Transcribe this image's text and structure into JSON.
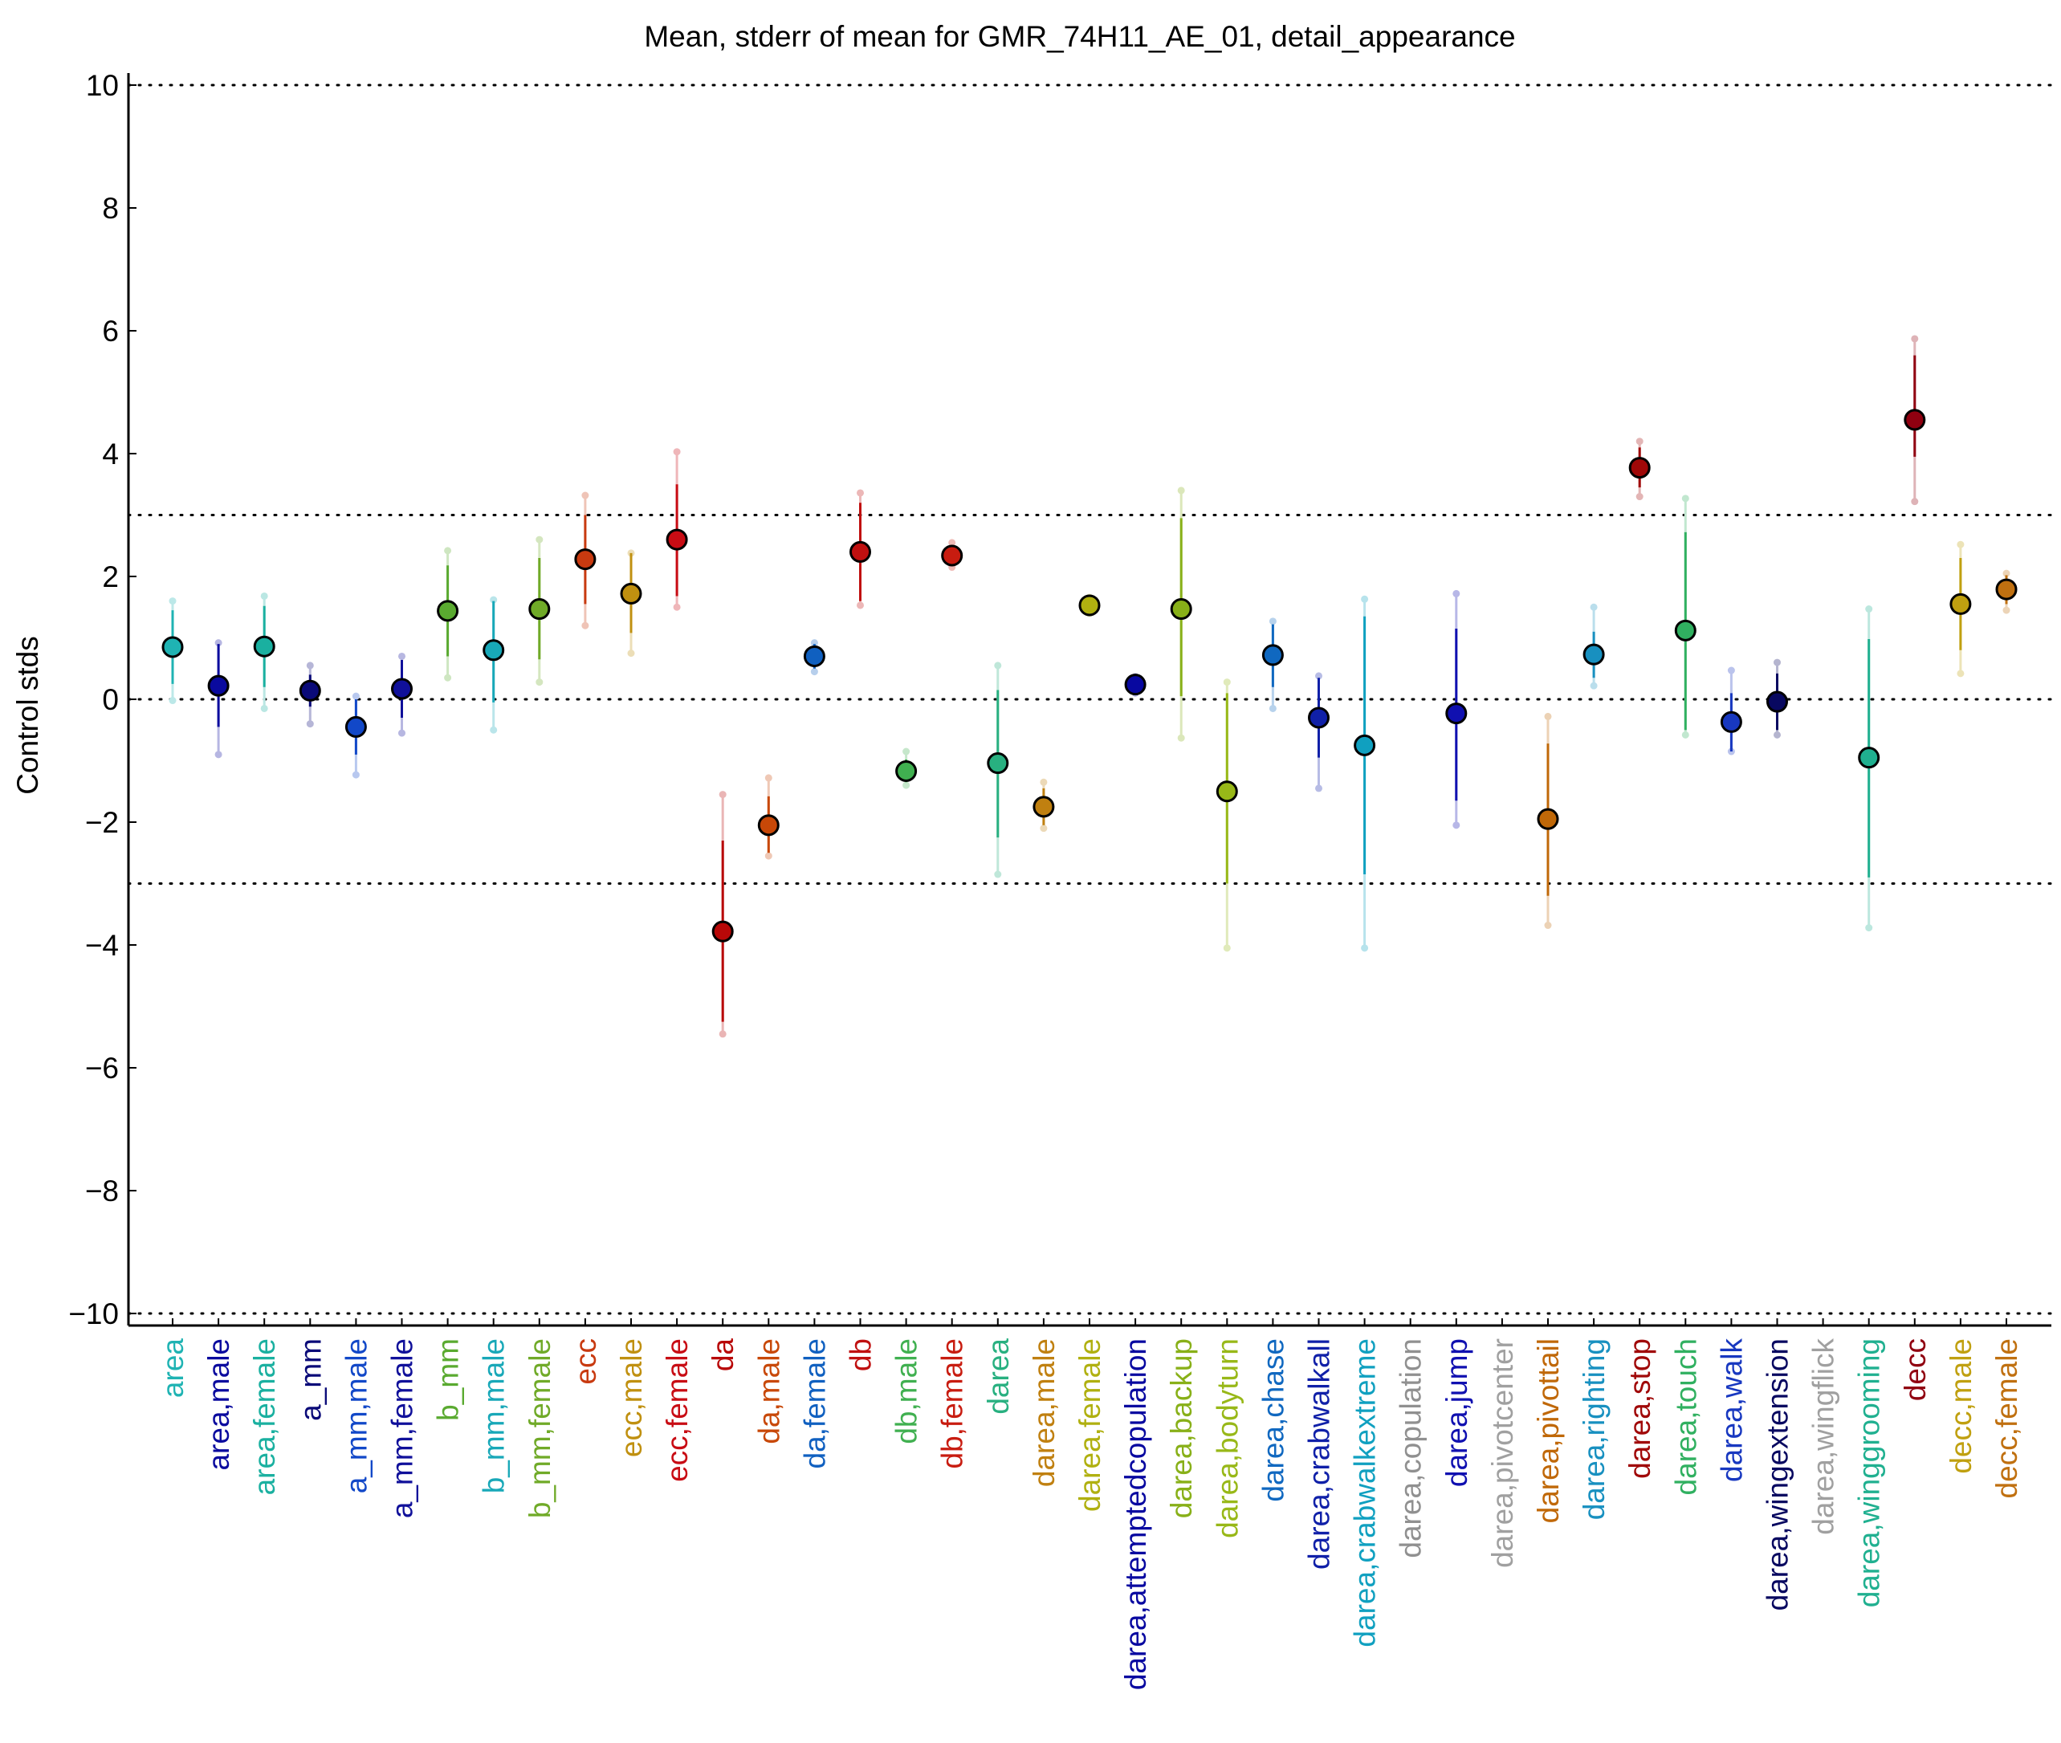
{
  "chart_data": {
    "type": "scatter",
    "title": "Mean, stderr of mean for GMR_74H11_AE_01, detail_appearance",
    "xlabel": "",
    "ylabel": "Control stds",
    "ylim": [
      -10.2,
      10.2
    ],
    "yticks": [
      10,
      8,
      6,
      4,
      2,
      0,
      -2,
      -4,
      -6,
      -8,
      -10
    ],
    "ytick_labels": [
      "10",
      "8",
      "6",
      "4",
      "2",
      "0",
      "−2",
      "−4",
      "−6",
      "−8",
      "−10"
    ],
    "reference_lines": [
      10,
      3,
      0,
      -3,
      -10
    ],
    "grid": false,
    "legend": "none",
    "marker": "circle with error bar",
    "points": [
      {
        "label": "area",
        "color": "#1fb3b3",
        "mean": 0.85,
        "se_low": 0.25,
        "se_high": 1.45,
        "ext_low": -0.02,
        "ext_high": 1.6
      },
      {
        "label": "area,male",
        "color": "#0a0a9e",
        "mean": 0.22,
        "se_low": -0.45,
        "se_high": 0.9,
        "ext_low": -0.9,
        "ext_high": 0.92
      },
      {
        "label": "area,female",
        "color": "#1ab0a0",
        "mean": 0.86,
        "se_low": 0.2,
        "se_high": 1.52,
        "ext_low": -0.15,
        "ext_high": 1.68
      },
      {
        "label": "a_mm",
        "color": "#0a0a78",
        "mean": 0.14,
        "se_low": -0.12,
        "se_high": 0.4,
        "ext_low": -0.4,
        "ext_high": 0.55
      },
      {
        "label": "a_mm,male",
        "color": "#1248c8",
        "mean": -0.45,
        "se_low": -0.9,
        "se_high": 0.0,
        "ext_low": -1.23,
        "ext_high": 0.05
      },
      {
        "label": "a_mm,female",
        "color": "#10109a",
        "mean": 0.17,
        "se_low": -0.3,
        "se_high": 0.64,
        "ext_low": -0.55,
        "ext_high": 0.7
      },
      {
        "label": "b_mm",
        "color": "#5aaa30",
        "mean": 1.44,
        "se_low": 0.7,
        "se_high": 2.18,
        "ext_low": 0.35,
        "ext_high": 2.42
      },
      {
        "label": "b_mm,male",
        "color": "#18a8b8",
        "mean": 0.8,
        "se_low": -0.05,
        "se_high": 1.6,
        "ext_low": -0.5,
        "ext_high": 1.62
      },
      {
        "label": "b_mm,female",
        "color": "#70aa28",
        "mean": 1.47,
        "se_low": 0.65,
        "se_high": 2.3,
        "ext_low": 0.28,
        "ext_high": 2.6
      },
      {
        "label": "ecc",
        "color": "#c83a10",
        "mean": 2.28,
        "se_low": 1.55,
        "se_high": 3.0,
        "ext_low": 1.2,
        "ext_high": 3.32
      },
      {
        "label": "ecc,male",
        "color": "#c09010",
        "mean": 1.72,
        "se_low": 1.08,
        "se_high": 2.38,
        "ext_low": 0.75,
        "ext_high": 2.38
      },
      {
        "label": "ecc,female",
        "color": "#c80c14",
        "mean": 2.6,
        "se_low": 1.68,
        "se_high": 3.5,
        "ext_low": 1.5,
        "ext_high": 4.03
      },
      {
        "label": "da",
        "color": "#b80808",
        "mean": -3.78,
        "se_low": -5.25,
        "se_high": -2.3,
        "ext_low": -5.45,
        "ext_high": -1.55
      },
      {
        "label": "da,male",
        "color": "#c84808",
        "mean": -2.05,
        "se_low": -2.5,
        "se_high": -1.58,
        "ext_low": -2.55,
        "ext_high": -1.28
      },
      {
        "label": "da,female",
        "color": "#1060c0",
        "mean": 0.7,
        "se_low": 0.5,
        "se_high": 0.9,
        "ext_low": 0.45,
        "ext_high": 0.92
      },
      {
        "label": "db",
        "color": "#c01010",
        "mean": 2.4,
        "se_low": 1.6,
        "se_high": 3.2,
        "ext_low": 1.53,
        "ext_high": 3.36
      },
      {
        "label": "db,male",
        "color": "#40b050",
        "mean": -1.17,
        "se_low": -1.35,
        "se_high": -0.98,
        "ext_low": -1.4,
        "ext_high": -0.85
      },
      {
        "label": "db,female",
        "color": "#c81c10",
        "mean": 2.34,
        "se_low": 2.2,
        "se_high": 2.48,
        "ext_low": 2.15,
        "ext_high": 2.55
      },
      {
        "label": "darea",
        "color": "#28b080",
        "mean": -1.04,
        "se_low": -2.25,
        "se_high": 0.15,
        "ext_low": -2.85,
        "ext_high": 0.55
      },
      {
        "label": "darea,male",
        "color": "#c08010",
        "mean": -1.75,
        "se_low": -2.05,
        "se_high": -1.45,
        "ext_low": -2.1,
        "ext_high": -1.35
      },
      {
        "label": "darea,female",
        "color": "#b0b010",
        "mean": 1.53,
        "se_low": 1.43,
        "se_high": 1.63,
        "ext_low": 1.4,
        "ext_high": 1.66
      },
      {
        "label": "darea,attemptedcopulation",
        "color": "#0808a0",
        "mean": 0.24,
        "se_low": 0.14,
        "se_high": 0.34,
        "ext_low": 0.1,
        "ext_high": 0.37
      },
      {
        "label": "darea,backup",
        "color": "#88b018",
        "mean": 1.47,
        "se_low": 0.05,
        "se_high": 2.95,
        "ext_low": -0.63,
        "ext_high": 3.4
      },
      {
        "label": "darea,bodyturn",
        "color": "#98b818",
        "mean": -1.5,
        "se_low": -3.0,
        "se_high": 0.1,
        "ext_low": -4.05,
        "ext_high": 0.28
      },
      {
        "label": "darea,chase",
        "color": "#1068c0",
        "mean": 0.72,
        "se_low": 0.2,
        "se_high": 1.22,
        "ext_low": -0.15,
        "ext_high": 1.27
      },
      {
        "label": "darea,crabwalkall",
        "color": "#1020a8",
        "mean": -0.3,
        "se_low": -0.95,
        "se_high": 0.35,
        "ext_low": -1.45,
        "ext_high": 0.38
      },
      {
        "label": "darea,crabwalkextreme",
        "color": "#10a0c0",
        "mean": -0.75,
        "se_low": -2.85,
        "se_high": 1.35,
        "ext_low": -4.05,
        "ext_high": 1.63
      },
      {
        "label": "darea,copulation",
        "color": "#909090"
      },
      {
        "label": "darea,jump",
        "color": "#1010b0",
        "mean": -0.23,
        "se_low": -1.65,
        "se_high": 1.15,
        "ext_low": -2.05,
        "ext_high": 1.72
      },
      {
        "label": "darea,pivotcenter",
        "color": "#a0a0a0"
      },
      {
        "label": "darea,pivottail",
        "color": "#c06808",
        "mean": -1.95,
        "se_low": -3.2,
        "se_high": -0.72,
        "ext_low": -3.68,
        "ext_high": -0.28
      },
      {
        "label": "darea,righting",
        "color": "#1890c0",
        "mean": 0.73,
        "se_low": 0.35,
        "se_high": 1.1,
        "ext_low": 0.22,
        "ext_high": 1.5
      },
      {
        "label": "darea,stop",
        "color": "#a00808",
        "mean": 3.77,
        "se_low": 3.45,
        "se_high": 4.1,
        "ext_low": 3.3,
        "ext_high": 4.2
      },
      {
        "label": "darea,touch",
        "color": "#30b060",
        "mean": 1.12,
        "se_low": -0.5,
        "se_high": 2.72,
        "ext_low": -0.58,
        "ext_high": 3.27
      },
      {
        "label": "darea,walk",
        "color": "#1838c0",
        "mean": -0.37,
        "se_low": -0.85,
        "se_high": 0.1,
        "ext_low": -0.85,
        "ext_high": 0.47
      },
      {
        "label": "darea,wingextension",
        "color": "#080860",
        "mean": -0.04,
        "se_low": -0.5,
        "se_high": 0.42,
        "ext_low": -0.58,
        "ext_high": 0.6
      },
      {
        "label": "darea,wingflick",
        "color": "#a0a0a0"
      },
      {
        "label": "darea,winggrooming",
        "color": "#20b090",
        "mean": -0.95,
        "se_low": -2.9,
        "se_high": 0.98,
        "ext_low": -3.72,
        "ext_high": 1.47
      },
      {
        "label": "decc",
        "color": "#900010",
        "mean": 4.55,
        "se_low": 3.95,
        "se_high": 5.6,
        "ext_low": 3.22,
        "ext_high": 5.87
      },
      {
        "label": "decc,male",
        "color": "#c0a010",
        "mean": 1.55,
        "se_low": 0.8,
        "se_high": 2.3,
        "ext_low": 0.42,
        "ext_high": 2.52
      },
      {
        "label": "decc,female",
        "color": "#c07010",
        "mean": 1.79,
        "se_low": 1.55,
        "se_high": 2.02,
        "ext_low": 1.45,
        "ext_high": 2.05
      }
    ]
  }
}
